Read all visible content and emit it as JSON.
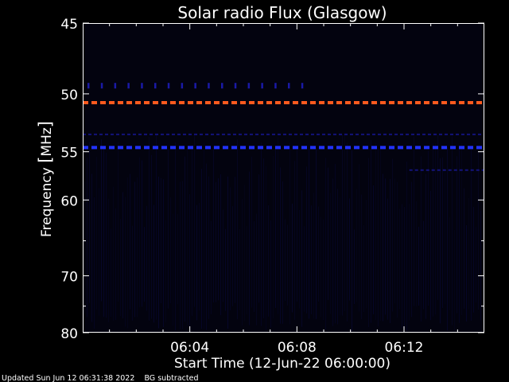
{
  "chart_data": {
    "type": "heatmap",
    "title": "Solar radio Flux (Glasgow)",
    "ylabel_prefix": "Frequency ",
    "ylabel_unit": "MHz",
    "xlabel": "Start Time (12-Jun-22 06:00:00)",
    "y_ticks": [
      "45",
      "50",
      "55",
      "60",
      "70",
      "80"
    ],
    "x_ticks": [
      "06:04",
      "06:08",
      "06:12"
    ],
    "footer": "Updated Sun Jun 12 06:31:38 2022    BG subtracted",
    "y_scale": "reciprocal",
    "ylim": [
      45,
      80
    ],
    "xlim_minutes": [
      0,
      15
    ],
    "grid": false,
    "colors": {
      "background": "#000000",
      "plot_bg": "#03030f",
      "axes": "#ffffff",
      "band_red": "#ff5a1e",
      "band_blue": "#2232ff",
      "band_dark_blue": "#1a1aa6"
    },
    "bands": [
      {
        "freq_mhz": 49.4,
        "color": "band_dark_blue",
        "style": "ticks",
        "t_start": 0,
        "t_end": 8.6
      },
      {
        "freq_mhz": 50.7,
        "color": "band_red",
        "style": "dashed",
        "t_start": 0,
        "t_end": 15
      },
      {
        "freq_mhz": 53.4,
        "color": "band_dark_blue",
        "style": "faint",
        "t_start": 0,
        "t_end": 15
      },
      {
        "freq_mhz": 54.6,
        "color": "band_blue",
        "style": "dashed",
        "t_start": 0,
        "t_end": 15
      },
      {
        "freq_mhz": 56.8,
        "color": "band_dark_blue",
        "style": "faint",
        "t_start": 12.2,
        "t_end": 15
      }
    ]
  }
}
